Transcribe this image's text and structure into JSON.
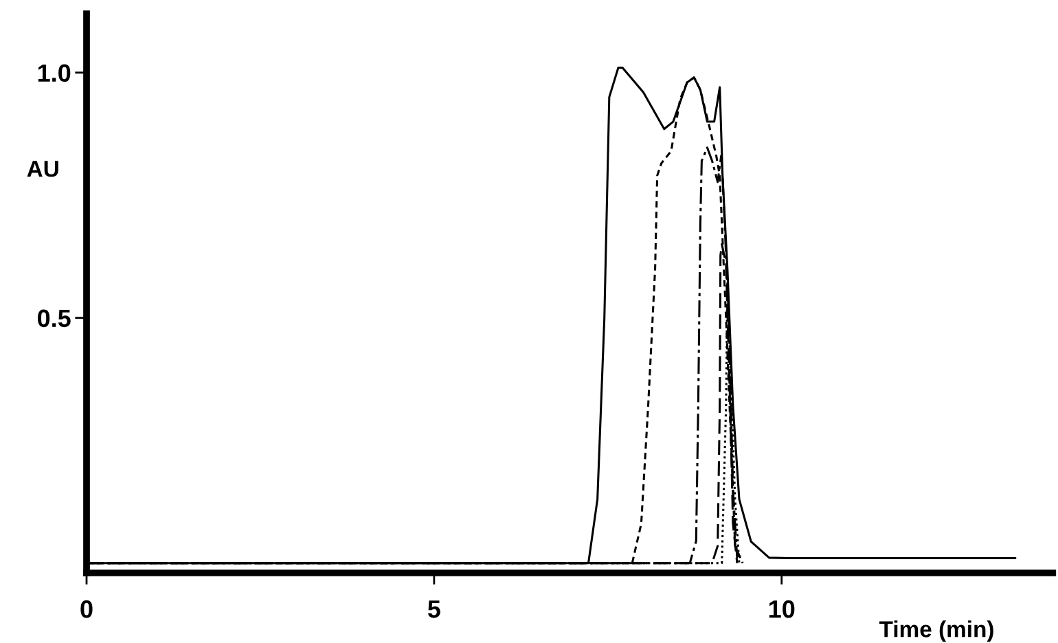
{
  "chart_data": {
    "type": "line",
    "xlabel": "Time (min)",
    "ylabel": "AU",
    "xlim": [
      0,
      13.9
    ],
    "ylim": [
      -0.02,
      1.12
    ],
    "xticks": [
      0,
      5,
      10
    ],
    "yticks": [
      {
        "value": 0.5,
        "label": "0.5"
      },
      {
        "value": 1.0,
        "label": "1.0"
      }
    ],
    "grid": false,
    "marker": "none",
    "series": [
      {
        "color": "#000000",
        "line_style": "solid",
        "x": [
          0,
          7.22,
          7.35,
          7.45,
          7.52,
          7.65,
          7.71,
          8.01,
          8.31,
          8.44,
          8.64,
          8.74,
          8.83,
          8.93,
          9.03,
          9.11,
          9.15,
          9.22,
          9.3,
          9.39,
          9.56,
          9.82,
          10.1,
          13.36
        ],
        "values": [
          0.0,
          0.0,
          0.13,
          0.5,
          0.95,
          1.01,
          1.01,
          0.96,
          0.885,
          0.9,
          0.98,
          0.99,
          0.965,
          0.9,
          0.9,
          0.97,
          0.79,
          0.6,
          0.32,
          0.13,
          0.044,
          0.011,
          0.01,
          0.01
        ]
      },
      {
        "color": "#000000",
        "line_style": "dashed",
        "x": [
          0,
          7.85,
          7.98,
          8.08,
          8.18,
          8.21,
          8.27,
          8.41,
          8.54,
          8.64,
          8.74,
          8.83,
          8.96,
          9.06,
          9.11,
          9.2,
          9.28,
          9.33,
          9.44
        ],
        "values": [
          0.0,
          0.0,
          0.08,
          0.32,
          0.6,
          0.79,
          0.815,
          0.84,
          0.946,
          0.98,
          0.99,
          0.965,
          0.89,
          0.83,
          0.79,
          0.5,
          0.22,
          0.035,
          0.0
        ]
      },
      {
        "color": "#000000",
        "line_style": "dashdot",
        "x": [
          0,
          8.68,
          8.77,
          8.8,
          8.83,
          8.85,
          8.93,
          9.0,
          9.08,
          9.13,
          9.15,
          9.24,
          9.3,
          9.36
        ],
        "values": [
          0.0,
          0.0,
          0.045,
          0.32,
          0.69,
          0.82,
          0.847,
          0.82,
          0.777,
          0.83,
          0.79,
          0.5,
          0.15,
          0.01
        ]
      },
      {
        "color": "#000000",
        "line_style": "longdash",
        "x": [
          0,
          9.0,
          9.08,
          9.11,
          9.12,
          9.14,
          9.2,
          9.26,
          9.3,
          9.36
        ],
        "values": [
          0.0,
          0.0,
          0.035,
          0.32,
          0.627,
          0.65,
          0.61,
          0.32,
          0.08,
          0.0
        ]
      },
      {
        "color": "#000000",
        "line_style": "dotted",
        "x": [
          0,
          9.14,
          9.2,
          9.22,
          9.24,
          9.33,
          9.39
        ],
        "values": [
          0.0,
          0.0,
          0.32,
          0.58,
          0.5,
          0.13,
          0.0
        ]
      }
    ]
  }
}
